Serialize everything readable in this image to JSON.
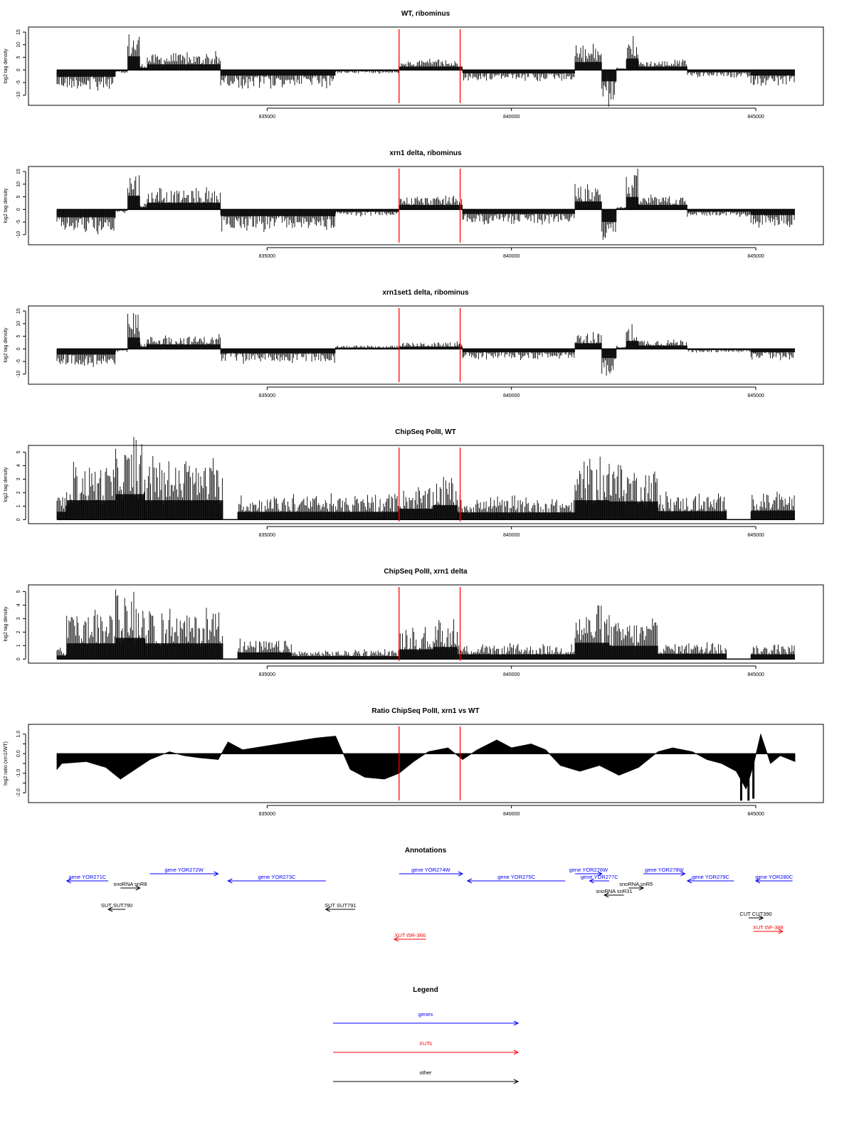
{
  "chart_data": [
    {
      "type": "bar",
      "title": "WT, ribominus",
      "ylabel": "log2 tag density",
      "xlabel": "",
      "ylim": [
        -14,
        17
      ],
      "yticks": [
        -10,
        -5,
        0,
        5,
        10,
        15
      ],
      "xlim": [
        830700,
        845800
      ],
      "xticks": [
        835000,
        840000,
        845000
      ],
      "xtick_labels": [
        "835000",
        "840000",
        "845000"
      ],
      "segments": [
        {
          "from": 830700,
          "to": 831900,
          "value": -6
        },
        {
          "from": 831900,
          "to": 832150,
          "value": -1
        },
        {
          "from": 832150,
          "to": 832400,
          "value": 12
        },
        {
          "from": 832400,
          "to": 832550,
          "value": 2
        },
        {
          "from": 832550,
          "to": 834050,
          "value": 5
        },
        {
          "from": 834050,
          "to": 836400,
          "value": -5
        },
        {
          "from": 836400,
          "to": 837700,
          "value": -1
        },
        {
          "from": 837700,
          "to": 839000,
          "value": 3
        },
        {
          "from": 839000,
          "to": 841300,
          "value": -3
        },
        {
          "from": 841300,
          "to": 841850,
          "value": 7
        },
        {
          "from": 841850,
          "to": 842150,
          "value": -10
        },
        {
          "from": 842150,
          "to": 842350,
          "value": 1
        },
        {
          "from": 842350,
          "to": 842600,
          "value": 10
        },
        {
          "from": 842600,
          "to": 843600,
          "value": 3
        },
        {
          "from": 843600,
          "to": 844900,
          "value": -2
        },
        {
          "from": 844900,
          "to": 845800,
          "value": -5
        }
      ]
    },
    {
      "type": "bar",
      "title": "xrn1 delta, ribominus",
      "ylabel": "log2 tag density",
      "xlabel": "",
      "ylim": [
        -14,
        17
      ],
      "yticks": [
        -10,
        -5,
        0,
        5,
        10,
        15
      ],
      "xlim": [
        830700,
        845800
      ],
      "xticks": [
        835000,
        840000,
        845000
      ],
      "xtick_labels": [
        "835000",
        "840000",
        "845000"
      ],
      "segments": [
        {
          "from": 830700,
          "to": 831900,
          "value": -7
        },
        {
          "from": 831900,
          "to": 832150,
          "value": -1
        },
        {
          "from": 832150,
          "to": 832400,
          "value": 12
        },
        {
          "from": 832400,
          "to": 832550,
          "value": 2
        },
        {
          "from": 832550,
          "to": 834050,
          "value": 6
        },
        {
          "from": 834050,
          "to": 836400,
          "value": -6
        },
        {
          "from": 836400,
          "to": 837700,
          "value": -2
        },
        {
          "from": 837700,
          "to": 839000,
          "value": 4
        },
        {
          "from": 839000,
          "to": 841300,
          "value": -4
        },
        {
          "from": 841300,
          "to": 841850,
          "value": 7
        },
        {
          "from": 841850,
          "to": 842150,
          "value": -11
        },
        {
          "from": 842150,
          "to": 842350,
          "value": 1
        },
        {
          "from": 842350,
          "to": 842600,
          "value": 11
        },
        {
          "from": 842600,
          "to": 843600,
          "value": 4
        },
        {
          "from": 843600,
          "to": 844900,
          "value": -2
        },
        {
          "from": 844900,
          "to": 845800,
          "value": -5
        }
      ]
    },
    {
      "type": "bar",
      "title": "xrn1set1 delta, ribominus",
      "ylabel": "log2 tag density",
      "xlabel": "",
      "ylim": [
        -14,
        17
      ],
      "yticks": [
        -10,
        -5,
        0,
        5,
        10,
        15
      ],
      "xlim": [
        830700,
        845800
      ],
      "xticks": [
        835000,
        840000,
        845000
      ],
      "xtick_labels": [
        "835000",
        "840000",
        "845000"
      ],
      "segments": [
        {
          "from": 830700,
          "to": 831900,
          "value": -5
        },
        {
          "from": 831900,
          "to": 832150,
          "value": -1
        },
        {
          "from": 832150,
          "to": 832400,
          "value": 10
        },
        {
          "from": 832400,
          "to": 832550,
          "value": 2
        },
        {
          "from": 832550,
          "to": 834050,
          "value": 4
        },
        {
          "from": 834050,
          "to": 836400,
          "value": -4
        },
        {
          "from": 836400,
          "to": 837700,
          "value": 1
        },
        {
          "from": 837700,
          "to": 839000,
          "value": 2
        },
        {
          "from": 839000,
          "to": 841300,
          "value": -3
        },
        {
          "from": 841300,
          "to": 841850,
          "value": 5
        },
        {
          "from": 841850,
          "to": 842150,
          "value": -8
        },
        {
          "from": 842150,
          "to": 842350,
          "value": 1
        },
        {
          "from": 842350,
          "to": 842600,
          "value": 7
        },
        {
          "from": 842600,
          "to": 843600,
          "value": 3
        },
        {
          "from": 843600,
          "to": 844900,
          "value": -1
        },
        {
          "from": 844900,
          "to": 845800,
          "value": -3
        }
      ]
    },
    {
      "type": "bar",
      "title": "ChipSeq PolII, WT",
      "ylabel": "log2 tag density",
      "xlabel": "",
      "ylim": [
        -0.3,
        5.5
      ],
      "yticks": [
        0,
        1,
        2,
        3,
        4,
        5
      ],
      "xlim": [
        830700,
        845800
      ],
      "xticks": [
        835000,
        840000,
        845000
      ],
      "xtick_labels": [
        "835000",
        "840000",
        "845000"
      ],
      "segments": [
        {
          "from": 830700,
          "to": 830900,
          "value": 1.3
        },
        {
          "from": 830900,
          "to": 831900,
          "value": 3.2
        },
        {
          "from": 831900,
          "to": 832500,
          "value": 4.2
        },
        {
          "from": 832500,
          "to": 834100,
          "value": 3.2
        },
        {
          "from": 834100,
          "to": 834400,
          "value": 0
        },
        {
          "from": 834400,
          "to": 837700,
          "value": 1.3
        },
        {
          "from": 837700,
          "to": 838400,
          "value": 1.8
        },
        {
          "from": 838400,
          "to": 838900,
          "value": 2.4
        },
        {
          "from": 838900,
          "to": 841300,
          "value": 1.2
        },
        {
          "from": 841300,
          "to": 842000,
          "value": 3.2
        },
        {
          "from": 842000,
          "to": 843000,
          "value": 3.0
        },
        {
          "from": 843000,
          "to": 844400,
          "value": 1.4
        },
        {
          "from": 844400,
          "to": 844900,
          "value": 0
        },
        {
          "from": 844900,
          "to": 845800,
          "value": 1.5
        }
      ]
    },
    {
      "type": "bar",
      "title": "ChipSeq PolII, xrn1 delta",
      "ylabel": "log2 tag density",
      "xlabel": "",
      "ylim": [
        -0.3,
        5.5
      ],
      "yticks": [
        0,
        1,
        2,
        3,
        4,
        5
      ],
      "xlim": [
        830700,
        845800
      ],
      "xticks": [
        835000,
        840000,
        845000
      ],
      "xtick_labels": [
        "835000",
        "840000",
        "845000"
      ],
      "segments": [
        {
          "from": 830700,
          "to": 830900,
          "value": 0.6
        },
        {
          "from": 830900,
          "to": 831900,
          "value": 2.6
        },
        {
          "from": 831900,
          "to": 832500,
          "value": 3.5
        },
        {
          "from": 832500,
          "to": 834100,
          "value": 2.6
        },
        {
          "from": 834100,
          "to": 834400,
          "value": 0
        },
        {
          "from": 834400,
          "to": 835500,
          "value": 1.1
        },
        {
          "from": 835500,
          "to": 837700,
          "value": 0.5
        },
        {
          "from": 837700,
          "to": 838400,
          "value": 1.6
        },
        {
          "from": 838400,
          "to": 838900,
          "value": 2.0
        },
        {
          "from": 838900,
          "to": 841300,
          "value": 0.8
        },
        {
          "from": 841300,
          "to": 842000,
          "value": 2.7
        },
        {
          "from": 842000,
          "to": 843000,
          "value": 2.2
        },
        {
          "from": 843000,
          "to": 844400,
          "value": 0.9
        },
        {
          "from": 844400,
          "to": 844900,
          "value": 0
        },
        {
          "from": 844900,
          "to": 845800,
          "value": 0.8
        }
      ]
    },
    {
      "type": "area",
      "title": "Ratio ChipSeq PolII, xrn1 vs WT",
      "ylabel": "log2 ratio (xrn1/WT)",
      "xlabel": "",
      "ylim": [
        -2.5,
        1.5
      ],
      "yticks": [
        -2,
        -1.5,
        -1,
        -0.5,
        0,
        0.5,
        1
      ],
      "ytick_labels": [
        "-2.0",
        "",
        "-1.0",
        "",
        "0.0",
        "",
        "1.0"
      ],
      "xlim": [
        830700,
        845800
      ],
      "xticks": [
        835000,
        840000,
        845000
      ],
      "xtick_labels": [
        "835000",
        "840000",
        "845000"
      ],
      "x": [
        830700,
        830800,
        831300,
        831700,
        832000,
        832300,
        832600,
        833000,
        833300,
        833600,
        834000,
        834200,
        834500,
        835000,
        835500,
        836000,
        836400,
        836700,
        837000,
        837400,
        837700,
        838000,
        838300,
        838700,
        839000,
        839300,
        839700,
        840000,
        840400,
        840700,
        841000,
        841400,
        841800,
        842200,
        842600,
        843000,
        843300,
        843700,
        844000,
        844300,
        844600,
        844800,
        844950,
        845100,
        845300,
        845500,
        845800
      ],
      "y": [
        -0.8,
        -0.5,
        -0.4,
        -0.7,
        -1.3,
        -0.8,
        -0.3,
        0.1,
        -0.1,
        -0.2,
        -0.3,
        0.6,
        0.2,
        0.4,
        0.6,
        0.8,
        0.9,
        -0.8,
        -1.2,
        -1.3,
        -1.0,
        -0.4,
        0.1,
        0.3,
        -0.3,
        0.2,
        0.7,
        0.3,
        0.5,
        0.2,
        -0.6,
        -0.9,
        -0.6,
        -1.1,
        -0.7,
        0.1,
        0.3,
        0.1,
        -0.3,
        -0.5,
        -0.9,
        -1.8,
        -0.6,
        1.0,
        -0.5,
        -0.1,
        -0.4
      ],
      "hspan_note": ""
    }
  ],
  "markers": {
    "color": "#ff0000",
    "positions": [
      837700,
      838950
    ]
  },
  "annotations": {
    "title": "Annotations",
    "xlim": [
      830700,
      845800
    ],
    "items": [
      {
        "label": "gene YOR271C",
        "from": 830900,
        "to": 831750,
        "dir": "left",
        "color": "#0000ff",
        "row": 1
      },
      {
        "label": "gene YOR272W",
        "from": 832600,
        "to": 834000,
        "dir": "right",
        "color": "#0000ff",
        "row": 0
      },
      {
        "label": "gene YOR273C",
        "from": 834200,
        "to": 836200,
        "dir": "left",
        "color": "#0000ff",
        "row": 1
      },
      {
        "label": "gene YOR274W",
        "from": 837700,
        "to": 839000,
        "dir": "right",
        "color": "#0000ff",
        "row": 0
      },
      {
        "label": "gene YOR275C",
        "from": 839100,
        "to": 841100,
        "dir": "left",
        "color": "#0000ff",
        "row": 1
      },
      {
        "label": "gene YOR276W",
        "from": 841300,
        "to": 841850,
        "dir": "right",
        "color": "#0000ff",
        "row": 0
      },
      {
        "label": "gene YOR277C",
        "from": 841600,
        "to": 842000,
        "dir": "left",
        "color": "#0000ff",
        "row": 1
      },
      {
        "label": "gene YOR278W",
        "from": 842700,
        "to": 843550,
        "dir": "right",
        "color": "#0000ff",
        "row": 0
      },
      {
        "label": "gene YOR279C",
        "from": 843600,
        "to": 844550,
        "dir": "left",
        "color": "#0000ff",
        "row": 1
      },
      {
        "label": "gene YOR280C",
        "from": 845000,
        "to": 845750,
        "dir": "left",
        "color": "#0000ff",
        "row": 1
      },
      {
        "label": "snoRNA snR8",
        "from": 832000,
        "to": 832400,
        "dir": "right",
        "color": "#000000",
        "row": 2
      },
      {
        "label": "snoRNA snR5",
        "from": 842400,
        "to": 842700,
        "dir": "right",
        "color": "#000000",
        "row": 2
      },
      {
        "label": "snoRNA snR31",
        "from": 841900,
        "to": 842300,
        "dir": "left",
        "color": "#000000",
        "row": 3
      },
      {
        "label": "SUT SUT790",
        "from": 831750,
        "to": 832100,
        "dir": "left",
        "color": "#000000",
        "row": 4
      },
      {
        "label": "SUT SUT791",
        "from": 836200,
        "to": 836800,
        "dir": "left",
        "color": "#000000",
        "row": 4
      },
      {
        "label": "CUT CUT390",
        "from": 844850,
        "to": 845150,
        "dir": "right",
        "color": "#000000",
        "row": 5
      },
      {
        "label": "XUT t5F-388",
        "from": 844950,
        "to": 845550,
        "dir": "right",
        "color": "#ff0000",
        "row": 6
      },
      {
        "label": "XUT t5R-366",
        "from": 837600,
        "to": 838250,
        "dir": "left",
        "color": "#ff0000",
        "row": 7
      }
    ]
  },
  "legend": {
    "title": "Legend",
    "items": [
      {
        "label": "genes",
        "color": "#0000ff"
      },
      {
        "label": "XUTs",
        "color": "#ff0000"
      },
      {
        "label": "other",
        "color": "#000000"
      }
    ]
  }
}
